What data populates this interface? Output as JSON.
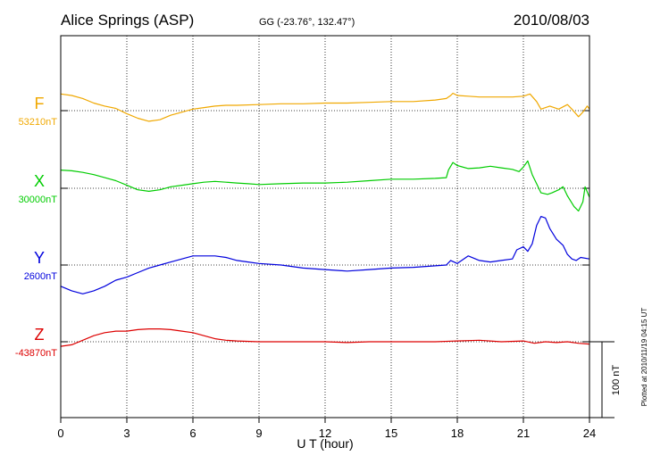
{
  "chart_data": {
    "type": "line",
    "title": "Alice Springs (ASP)",
    "subtitle": "GG (-23.76°, 132.47°)",
    "date": "2010/08/03",
    "xlabel": "U T (hour)",
    "xlim": [
      0,
      24
    ],
    "xticks": [
      "0",
      "3",
      "6",
      "9",
      "12",
      "15",
      "18",
      "21",
      "24"
    ],
    "grid": true,
    "scale_bar_label": "100 nT",
    "footnote": "Plotted at 2010/11/19 04:15 UT",
    "series": [
      {
        "name": "F",
        "baseline_label": "53210nT",
        "color": "#f0a800",
        "points": [
          [
            0,
            22
          ],
          [
            0.5,
            20
          ],
          [
            1,
            16
          ],
          [
            1.5,
            10
          ],
          [
            2,
            6
          ],
          [
            2.5,
            3
          ],
          [
            3,
            -4
          ],
          [
            3.5,
            -10
          ],
          [
            4,
            -14
          ],
          [
            4.5,
            -12
          ],
          [
            5,
            -6
          ],
          [
            5.5,
            -2
          ],
          [
            6,
            2
          ],
          [
            6.5,
            4
          ],
          [
            7,
            6
          ],
          [
            7.5,
            7
          ],
          [
            8,
            7
          ],
          [
            9,
            8
          ],
          [
            10,
            9
          ],
          [
            11,
            9
          ],
          [
            12,
            10
          ],
          [
            13,
            10
          ],
          [
            14,
            11
          ],
          [
            15,
            12
          ],
          [
            16,
            12
          ],
          [
            17,
            14
          ],
          [
            17.5,
            16
          ],
          [
            17.7,
            20
          ],
          [
            17.8,
            23
          ],
          [
            18,
            20
          ],
          [
            18.5,
            19
          ],
          [
            19,
            18
          ],
          [
            20,
            18
          ],
          [
            20.5,
            18
          ],
          [
            21,
            19
          ],
          [
            21.3,
            22
          ],
          [
            21.6,
            12
          ],
          [
            21.8,
            2
          ],
          [
            22.2,
            6
          ],
          [
            22.6,
            2
          ],
          [
            23,
            8
          ],
          [
            23.2,
            2
          ],
          [
            23.5,
            -8
          ],
          [
            23.7,
            -2
          ],
          [
            23.9,
            6
          ],
          [
            24,
            2
          ]
        ]
      },
      {
        "name": "X",
        "baseline_label": "30000nT",
        "color": "#00cc00",
        "points": [
          [
            0,
            24
          ],
          [
            0.5,
            23
          ],
          [
            1,
            21
          ],
          [
            1.5,
            18
          ],
          [
            2,
            14
          ],
          [
            2.5,
            10
          ],
          [
            3,
            4
          ],
          [
            3.5,
            -2
          ],
          [
            4,
            -4
          ],
          [
            4.5,
            -2
          ],
          [
            5,
            2
          ],
          [
            5.5,
            4
          ],
          [
            6,
            6
          ],
          [
            6.5,
            8
          ],
          [
            7,
            9
          ],
          [
            7.5,
            8
          ],
          [
            8,
            7
          ],
          [
            8.5,
            6
          ],
          [
            9,
            5
          ],
          [
            10,
            6
          ],
          [
            11,
            7
          ],
          [
            12,
            7
          ],
          [
            13,
            8
          ],
          [
            14,
            10
          ],
          [
            15,
            12
          ],
          [
            16,
            12
          ],
          [
            17,
            13
          ],
          [
            17.5,
            14
          ],
          [
            17.6,
            24
          ],
          [
            17.8,
            34
          ],
          [
            18,
            30
          ],
          [
            18.5,
            26
          ],
          [
            19,
            27
          ],
          [
            19.5,
            29
          ],
          [
            20,
            27
          ],
          [
            20.5,
            25
          ],
          [
            20.8,
            22
          ],
          [
            21,
            28
          ],
          [
            21.2,
            36
          ],
          [
            21.4,
            18
          ],
          [
            21.6,
            6
          ],
          [
            21.8,
            -6
          ],
          [
            22.1,
            -8
          ],
          [
            22.3,
            -6
          ],
          [
            22.6,
            -2
          ],
          [
            22.8,
            2
          ],
          [
            23,
            -10
          ],
          [
            23.3,
            -24
          ],
          [
            23.5,
            -30
          ],
          [
            23.7,
            -18
          ],
          [
            23.8,
            2
          ],
          [
            24,
            -12
          ]
        ]
      },
      {
        "name": "Y",
        "baseline_label": "2600nT",
        "color": "#0000dd",
        "points": [
          [
            0,
            -28
          ],
          [
            0.5,
            -34
          ],
          [
            1,
            -38
          ],
          [
            1.5,
            -34
          ],
          [
            2,
            -28
          ],
          [
            2.5,
            -20
          ],
          [
            3,
            -16
          ],
          [
            3.5,
            -10
          ],
          [
            4,
            -4
          ],
          [
            4.5,
            0
          ],
          [
            5,
            4
          ],
          [
            5.5,
            8
          ],
          [
            6,
            12
          ],
          [
            6.5,
            12
          ],
          [
            7,
            12
          ],
          [
            7.5,
            10
          ],
          [
            8,
            6
          ],
          [
            8.5,
            4
          ],
          [
            9,
            2
          ],
          [
            10,
            0
          ],
          [
            11,
            -4
          ],
          [
            12,
            -6
          ],
          [
            13,
            -8
          ],
          [
            14,
            -6
          ],
          [
            15,
            -4
          ],
          [
            16,
            -3
          ],
          [
            17,
            -1
          ],
          [
            17.5,
            0
          ],
          [
            17.7,
            6
          ],
          [
            18,
            2
          ],
          [
            18.5,
            12
          ],
          [
            19,
            6
          ],
          [
            19.5,
            4
          ],
          [
            20,
            6
          ],
          [
            20.5,
            8
          ],
          [
            20.7,
            20
          ],
          [
            21,
            24
          ],
          [
            21.2,
            18
          ],
          [
            21.4,
            28
          ],
          [
            21.6,
            52
          ],
          [
            21.8,
            64
          ],
          [
            22,
            62
          ],
          [
            22.2,
            48
          ],
          [
            22.5,
            34
          ],
          [
            22.8,
            26
          ],
          [
            23,
            14
          ],
          [
            23.2,
            8
          ],
          [
            23.4,
            6
          ],
          [
            23.6,
            10
          ],
          [
            24,
            8
          ]
        ]
      },
      {
        "name": "Z",
        "baseline_label": "-43870nT",
        "color": "#dd0000",
        "points": [
          [
            0,
            -6
          ],
          [
            0.5,
            -4
          ],
          [
            1,
            2
          ],
          [
            1.5,
            8
          ],
          [
            2,
            12
          ],
          [
            2.5,
            14
          ],
          [
            3,
            14
          ],
          [
            3.5,
            16
          ],
          [
            4,
            17
          ],
          [
            4.5,
            17
          ],
          [
            5,
            16
          ],
          [
            5.5,
            14
          ],
          [
            6,
            12
          ],
          [
            6.5,
            8
          ],
          [
            7,
            4
          ],
          [
            7.5,
            2
          ],
          [
            8,
            1
          ],
          [
            9,
            0
          ],
          [
            10,
            0
          ],
          [
            11,
            0
          ],
          [
            12,
            0
          ],
          [
            13,
            -1
          ],
          [
            14,
            0
          ],
          [
            15,
            0
          ],
          [
            16,
            0
          ],
          [
            17,
            0
          ],
          [
            18,
            1
          ],
          [
            19,
            2
          ],
          [
            20,
            0
          ],
          [
            21,
            1
          ],
          [
            21.5,
            -2
          ],
          [
            22,
            0
          ],
          [
            22.5,
            -1
          ],
          [
            23,
            0
          ],
          [
            23.5,
            -2
          ],
          [
            24,
            -3
          ]
        ]
      }
    ]
  }
}
